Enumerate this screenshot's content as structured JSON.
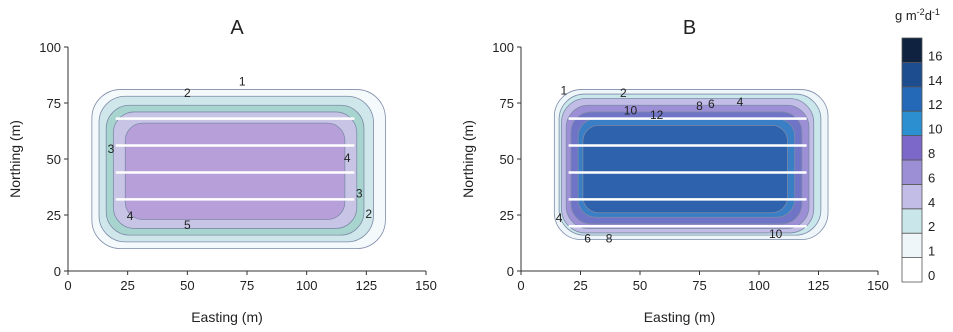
{
  "chart_data": [
    {
      "type": "contour",
      "title": "A",
      "xlabel": "Easting (m)",
      "ylabel": "Northing (m)",
      "xlim": [
        0,
        150
      ],
      "ylim": [
        0,
        100
      ],
      "xticks": [
        "0",
        "25",
        "50",
        "75",
        "100",
        "125",
        "150"
      ],
      "yticks": [
        "0",
        "25",
        "50",
        "75",
        "100"
      ],
      "grid": false,
      "region": {
        "x": [
          20,
          120
        ],
        "y": [
          20,
          68
        ]
      },
      "transect_lines_y": [
        32,
        44,
        56,
        68
      ],
      "levels": [
        {
          "level": 1,
          "fill": "#f4f9fb",
          "x": [
            10,
            133
          ],
          "y": [
            10,
            81
          ]
        },
        {
          "level": 2,
          "fill": "#cfe7ea",
          "x": [
            13,
            128
          ],
          "y": [
            13,
            78
          ]
        },
        {
          "level": 3,
          "fill": "#a8d4cf",
          "x": [
            16,
            124
          ],
          "y": [
            16,
            74
          ]
        },
        {
          "level": 4,
          "fill": "#c7c4e6",
          "x": [
            19,
            121
          ],
          "y": [
            19,
            71
          ]
        },
        {
          "level": 5,
          "fill": "#b79fd9",
          "x": [
            24,
            116
          ],
          "y": [
            23,
            66
          ]
        }
      ],
      "contour_labels": [
        {
          "text": "1",
          "x": 73,
          "y": 85
        },
        {
          "text": "2",
          "x": 50,
          "y": 80
        },
        {
          "text": "3",
          "x": 18,
          "y": 55
        },
        {
          "text": "4",
          "x": 117,
          "y": 51
        },
        {
          "text": "3",
          "x": 122,
          "y": 35
        },
        {
          "text": "2",
          "x": 126,
          "y": 26
        },
        {
          "text": "4",
          "x": 26,
          "y": 25
        },
        {
          "text": "5",
          "x": 50,
          "y": 21
        }
      ]
    },
    {
      "type": "contour",
      "title": "B",
      "xlabel": "Easting (m)",
      "ylabel": "Northing (m)",
      "xlim": [
        0,
        150
      ],
      "ylim": [
        0,
        100
      ],
      "xticks": [
        "0",
        "25",
        "50",
        "75",
        "100",
        "125",
        "150"
      ],
      "yticks": [
        "0",
        "25",
        "50",
        "75",
        "100"
      ],
      "grid": false,
      "region": {
        "x": [
          20,
          120
        ],
        "y": [
          20,
          68
        ]
      },
      "transect_lines_y": [
        20,
        32,
        44,
        56,
        68
      ],
      "levels": [
        {
          "level": 1,
          "fill": "#eef6fa",
          "x": [
            14,
            129
          ],
          "y": [
            14,
            81
          ]
        },
        {
          "level": 2,
          "fill": "#c9e6ea",
          "x": [
            16,
            126
          ],
          "y": [
            16,
            79
          ]
        },
        {
          "level": 4,
          "fill": "#c1bde6",
          "x": [
            17,
            123
          ],
          "y": [
            17,
            77
          ]
        },
        {
          "level": 6,
          "fill": "#9d8fd6",
          "x": [
            19,
            121
          ],
          "y": [
            19,
            74
          ]
        },
        {
          "level": 8,
          "fill": "#6f74c6",
          "x": [
            21,
            118
          ],
          "y": [
            21,
            71
          ]
        },
        {
          "level": 10,
          "fill": "#3a7ec6",
          "x": [
            24,
            115
          ],
          "y": [
            24,
            68
          ]
        },
        {
          "level": 12,
          "fill": "#2e62ad",
          "x": [
            26,
            112
          ],
          "y": [
            26,
            65
          ]
        }
      ],
      "contour_labels": [
        {
          "text": "1",
          "x": 18,
          "y": 81
        },
        {
          "text": "2",
          "x": 43,
          "y": 80
        },
        {
          "text": "10",
          "x": 46,
          "y": 72
        },
        {
          "text": "12",
          "x": 57,
          "y": 70
        },
        {
          "text": "8",
          "x": 75,
          "y": 74
        },
        {
          "text": "6",
          "x": 80,
          "y": 75
        },
        {
          "text": "4",
          "x": 92,
          "y": 76
        },
        {
          "text": "4",
          "x": 16,
          "y": 24
        },
        {
          "text": "6",
          "x": 28,
          "y": 15
        },
        {
          "text": "8",
          "x": 37,
          "y": 15
        },
        {
          "text": "10",
          "x": 107,
          "y": 17
        }
      ]
    }
  ],
  "colorbar": {
    "unit_parts": [
      "g m",
      "-2",
      "d",
      "-1"
    ],
    "bins": [
      {
        "label": "0",
        "color": "#ffffff"
      },
      {
        "label": "1",
        "color": "#eef6fa"
      },
      {
        "label": "2",
        "color": "#c9e6ea"
      },
      {
        "label": "4",
        "color": "#c1bde6"
      },
      {
        "label": "6",
        "color": "#9d8fd6"
      },
      {
        "label": "8",
        "color": "#7b68c8"
      },
      {
        "label": "10",
        "color": "#2b8fd0"
      },
      {
        "label": "12",
        "color": "#2468b8"
      },
      {
        "label": "14",
        "color": "#1d4d8f"
      },
      {
        "label": "16",
        "color": "#0f2340"
      }
    ]
  }
}
